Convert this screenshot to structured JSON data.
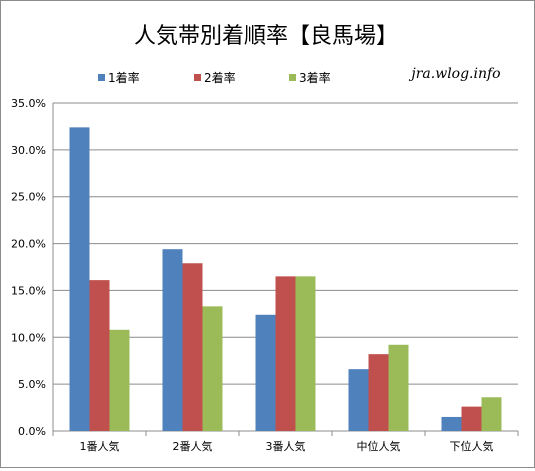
{
  "colors": {
    "series1": "#4f81bd",
    "series2": "#c0504d",
    "series3": "#9bbb59",
    "grid": "#8c8c8c"
  },
  "chart_data": {
    "type": "bar",
    "title": "人気帯別着順率【良馬場】",
    "watermark": "jra.wlog.info",
    "categories": [
      "1番人気",
      "2番人気",
      "3番人気",
      "中位人気",
      "下位人気"
    ],
    "series": [
      {
        "name": "1着率",
        "values": [
          32.4,
          19.4,
          12.4,
          6.6,
          1.5
        ]
      },
      {
        "name": "2着率",
        "values": [
          16.1,
          17.9,
          16.5,
          8.2,
          2.6
        ]
      },
      {
        "name": "3着率",
        "values": [
          10.8,
          13.3,
          16.5,
          9.2,
          3.6
        ]
      }
    ],
    "ylim": [
      0,
      35
    ],
    "yticks": [
      0,
      5,
      10,
      15,
      20,
      25,
      30,
      35
    ],
    "ytick_labels": [
      "0.0%",
      "5.0%",
      "10.0%",
      "15.0%",
      "20.0%",
      "25.0%",
      "30.0%",
      "35.0%"
    ],
    "grid": true,
    "legend_position": "top"
  }
}
